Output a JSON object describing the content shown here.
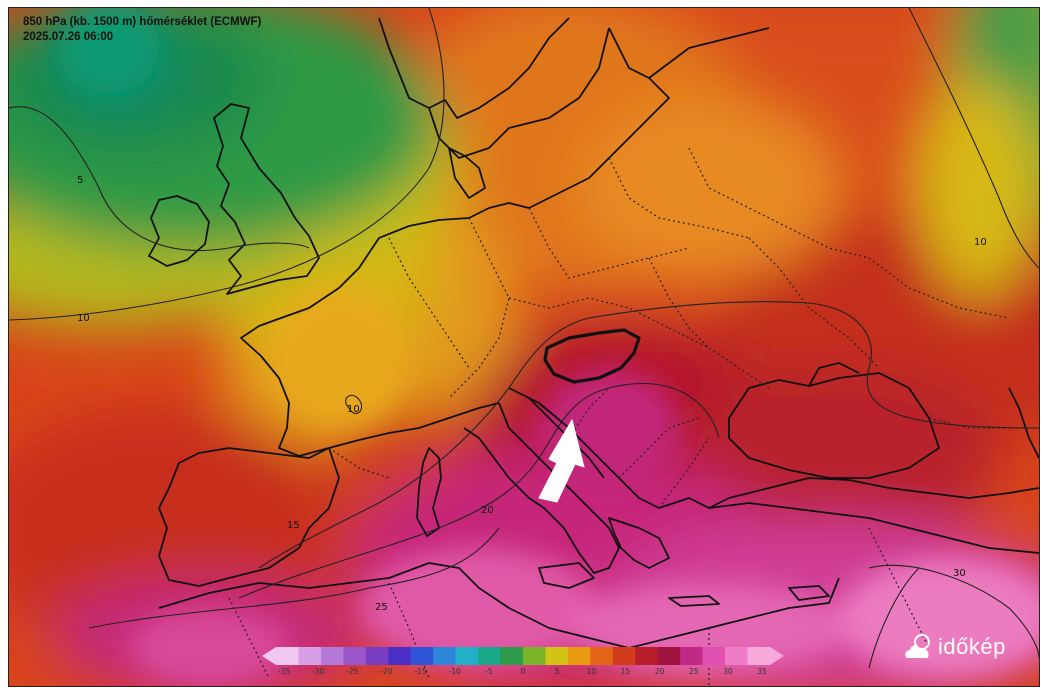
{
  "title": {
    "line1": "850 hPa (kb. 1500 m) hőmérséklet (ECMWF)",
    "line2": "2025.07.26 06:00"
  },
  "colorbar": {
    "ticks": [
      "-35",
      "-30",
      "-25",
      "-20",
      "-15",
      "-10",
      "-5",
      "0",
      "5",
      "10",
      "15",
      "20",
      "25",
      "30",
      "35"
    ],
    "colors": [
      "#f0c8f0",
      "#d7a0e6",
      "#b478d8",
      "#9a55c8",
      "#7a3cc0",
      "#4b2fc4",
      "#2f55d6",
      "#2e86d8",
      "#22b0c8",
      "#1aa88a",
      "#2e9c4a",
      "#7bb428",
      "#d2c414",
      "#e89a10",
      "#e46418",
      "#d23c1c",
      "#b81e2a",
      "#a01440",
      "#c02a86",
      "#e050b0",
      "#f07cc8",
      "#f8aadc"
    ]
  },
  "contour_labels": [
    "5",
    "10",
    "10",
    "10",
    "15",
    "20",
    "25",
    "30"
  ],
  "annotation": {
    "arrow": "white-arrow-pointing-to-hungary",
    "highlighted_country": "Hungary"
  },
  "logo": {
    "text": "időkép",
    "icon": "cloud-sun-icon"
  }
}
